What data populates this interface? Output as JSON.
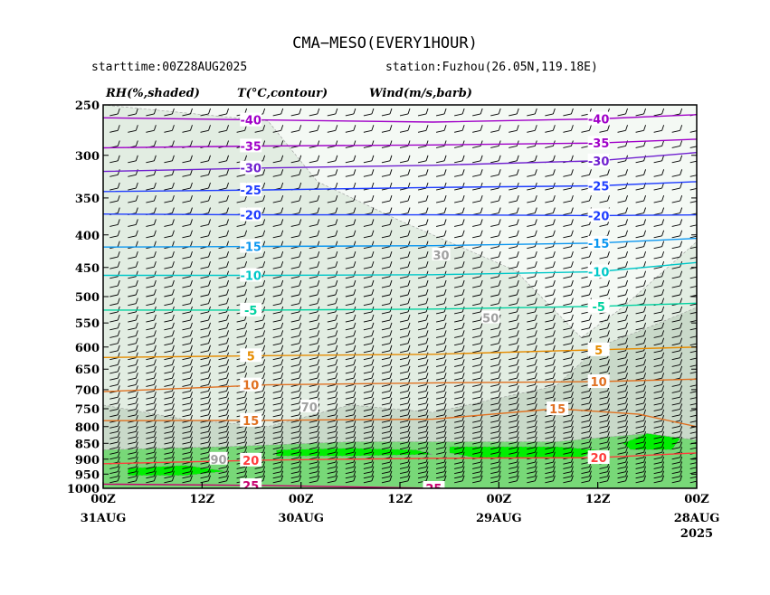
{
  "header": {
    "title": "CMA−MESO(EVERY1HOUR)",
    "starttime": "starttime:00Z28AUG2025",
    "station": "station:Fuzhou(26.05N,119.18E)"
  },
  "legend": {
    "rh": "RH(%,shaded)",
    "temp": "T(°C,contour)",
    "wind": "Wind(m/s,barb)"
  },
  "colors": {
    "rh_30": "#f4f9f4",
    "rh_50": "#e2ede2",
    "rh_70": "#c9d9c9",
    "rh_90": "#78d878",
    "rh_95": "#00ee00",
    "rh_99": "#009900",
    "t_neg40": "#a000c8",
    "t_neg30": "#7020d0",
    "t_neg20": "#1e3cff",
    "t_neg15": "#0a96f0",
    "t_neg10": "#00c8c8",
    "t_neg5": "#00d2a0",
    "t_5": "#e68c00",
    "t_15": "#e07020",
    "t_20": "#ff3c3c",
    "t_25": "#c8006e",
    "rh_label": "#a0a0a0",
    "barb": "#000000"
  },
  "chart_data": {
    "type": "time-height cross section",
    "yaxis": {
      "label": "",
      "scale": "log-pressure",
      "ticks": [
        "250",
        "300",
        "350",
        "400",
        "450",
        "500",
        "550",
        "600",
        "650",
        "700",
        "750",
        "800",
        "850",
        "900",
        "950",
        "1000"
      ],
      "range": [
        1000,
        250
      ]
    },
    "xaxis": {
      "label": "",
      "direction": "reversed",
      "ticks": [
        {
          "label": "00Z",
          "sublabel": "31AUG"
        },
        {
          "label": "12Z",
          "sublabel": ""
        },
        {
          "label": "00Z",
          "sublabel": "30AUG"
        },
        {
          "label": "12Z",
          "sublabel": ""
        },
        {
          "label": "00Z",
          "sublabel": "29AUG"
        },
        {
          "label": "12Z",
          "sublabel": ""
        },
        {
          "label": "00Z",
          "sublabel": "28AUG",
          "year": "2025"
        }
      ]
    },
    "temperature_contours": [
      {
        "value": -40,
        "label": "-40",
        "color": "#a000c8",
        "points": [
          [
            0,
            262
          ],
          [
            20,
            264
          ],
          [
            40,
            266
          ],
          [
            60,
            263
          ],
          [
            72,
            259
          ]
        ]
      },
      {
        "value": -35,
        "label": "-35",
        "color": "#a000c8",
        "points": [
          [
            0,
            292
          ],
          [
            20,
            290
          ],
          [
            40,
            289
          ],
          [
            60,
            287
          ],
          [
            72,
            283
          ]
        ]
      },
      {
        "value": -30,
        "label": "-30",
        "color": "#7020d0",
        "points": [
          [
            0,
            318
          ],
          [
            20,
            314
          ],
          [
            40,
            311
          ],
          [
            60,
            306
          ],
          [
            72,
            297
          ]
        ]
      },
      {
        "value": -25,
        "label": "-25",
        "color": "#1e3cff",
        "points": [
          [
            0,
            342
          ],
          [
            20,
            340
          ],
          [
            40,
            337
          ],
          [
            60,
            335
          ],
          [
            72,
            330
          ]
        ]
      },
      {
        "value": -20,
        "label": "-20",
        "color": "#1e3cff",
        "points": [
          [
            0,
            371
          ],
          [
            20,
            372
          ],
          [
            40,
            372
          ],
          [
            60,
            373
          ],
          [
            72,
            372
          ]
        ]
      },
      {
        "value": -15,
        "label": "-15",
        "color": "#0a96f0",
        "points": [
          [
            0,
            418
          ],
          [
            20,
            417
          ],
          [
            40,
            416
          ],
          [
            60,
            412
          ],
          [
            72,
            405
          ]
        ]
      },
      {
        "value": -10,
        "label": "-10",
        "color": "#00c8c8",
        "points": [
          [
            0,
            463
          ],
          [
            20,
            463
          ],
          [
            40,
            462
          ],
          [
            60,
            457
          ],
          [
            72,
            442
          ]
        ]
      },
      {
        "value": -5,
        "label": "-5",
        "color": "#00d2a0",
        "points": [
          [
            0,
            525
          ],
          [
            20,
            525
          ],
          [
            40,
            523
          ],
          [
            60,
            518
          ],
          [
            72,
            512
          ]
        ]
      },
      {
        "value": 5,
        "label": "5",
        "color": "#e68c00",
        "points": [
          [
            0,
            623
          ],
          [
            20,
            619
          ],
          [
            40,
            616
          ],
          [
            60,
            606
          ],
          [
            72,
            600
          ]
        ]
      },
      {
        "value": 10,
        "label": "10",
        "color": "#e07020",
        "points": [
          [
            0,
            705
          ],
          [
            20,
            688
          ],
          [
            40,
            683
          ],
          [
            60,
            680
          ],
          [
            72,
            674
          ]
        ]
      },
      {
        "value": 15,
        "label": "15",
        "color": "#e07020",
        "points": [
          [
            0,
            783
          ],
          [
            20,
            782
          ],
          [
            40,
            779
          ],
          [
            55,
            750
          ],
          [
            65,
            765
          ],
          [
            72,
            800
          ]
        ]
      },
      {
        "value": 20,
        "label": "20",
        "color": "#ff3c3c",
        "points": [
          [
            0,
            915
          ],
          [
            20,
            903
          ],
          [
            40,
            897
          ],
          [
            60,
            895
          ],
          [
            72,
            880
          ]
        ]
      },
      {
        "value": 25,
        "label": "25",
        "color": "#c8006e",
        "points": [
          [
            0,
            985
          ],
          [
            20,
            990
          ],
          [
            40,
            1000
          ]
        ]
      }
    ],
    "rh_labels": [
      "30",
      "50",
      "70",
      "90"
    ],
    "rh_regions": [
      {
        "level": 30,
        "color": "#f4f9f4",
        "points": [
          [
            0,
            250
          ],
          [
            72,
            250
          ],
          [
            72,
            1000
          ],
          [
            0,
            1000
          ]
        ]
      },
      {
        "level": 50,
        "color": "#e2ede2",
        "points": [
          [
            0,
            250
          ],
          [
            20,
            265
          ],
          [
            26,
            330
          ],
          [
            36,
            380
          ],
          [
            50,
            455
          ],
          [
            58,
            580
          ],
          [
            63,
            520
          ],
          [
            72,
            410
          ],
          [
            72,
            1000
          ],
          [
            0,
            1000
          ]
        ]
      },
      {
        "level": 70,
        "color": "#c9d9c9",
        "points": [
          [
            0,
            740
          ],
          [
            10,
            780
          ],
          [
            20,
            800
          ],
          [
            30,
            740
          ],
          [
            40,
            760
          ],
          [
            55,
            690
          ],
          [
            60,
            600
          ],
          [
            66,
            560
          ],
          [
            72,
            520
          ],
          [
            72,
            1000
          ],
          [
            0,
            1000
          ]
        ]
      },
      {
        "level": 90,
        "color": "#78d878",
        "points": [
          [
            0,
            870
          ],
          [
            15,
            860
          ],
          [
            30,
            845
          ],
          [
            40,
            845
          ],
          [
            55,
            845
          ],
          [
            66,
            820
          ],
          [
            72,
            840
          ],
          [
            72,
            1000
          ],
          [
            0,
            1000
          ]
        ]
      },
      {
        "level": 95,
        "color": "#00ee00",
        "points": [
          [
            3,
            930
          ],
          [
            10,
            920
          ],
          [
            15,
            940
          ],
          [
            10,
            955
          ],
          [
            3,
            955
          ]
        ]
      },
      {
        "level": 95,
        "color": "#00ee00",
        "points": [
          [
            21,
            870
          ],
          [
            30,
            865
          ],
          [
            38,
            870
          ],
          [
            40,
            885
          ],
          [
            30,
            890
          ],
          [
            21,
            890
          ]
        ]
      },
      {
        "level": 95,
        "color": "#00ee00",
        "points": [
          [
            42,
            860
          ],
          [
            55,
            860
          ],
          [
            60,
            870
          ],
          [
            58,
            895
          ],
          [
            45,
            895
          ],
          [
            42,
            880
          ]
        ]
      },
      {
        "level": 95,
        "color": "#00ee00",
        "points": [
          [
            66,
            820
          ],
          [
            70,
            835
          ],
          [
            69,
            870
          ],
          [
            64,
            870
          ],
          [
            63,
            850
          ]
        ]
      }
    ]
  }
}
